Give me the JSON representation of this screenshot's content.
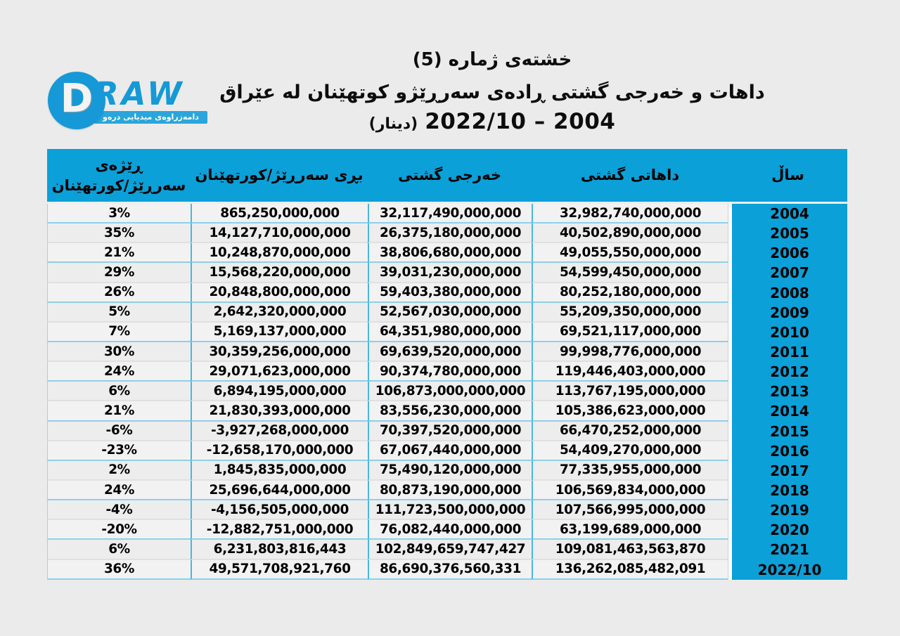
{
  "logo": {
    "d_mark": "D",
    "brand": "RAW",
    "tagline": "دامەزراوەی میدیایی درەو"
  },
  "title": {
    "line1": "خشتەی ژمارە (5)",
    "line2": "داهات و خەرجی گشتی ڕادەی سەرڕێژو کوتهێنان لە عێراق",
    "unit": "(دینار)",
    "range_display": "2022/10 – 2004"
  },
  "colors": {
    "accent_cyan": "#0ba0d8",
    "row_divider_cyan": "#8fcfec",
    "row_divider_gray": "#e0e0e0",
    "cell_background": "#f2f2f2",
    "page_background": "#ebebeb"
  },
  "table_headers": {
    "ratio_line1": "ڕێژەی",
    "ratio_line2": "سەرڕێژ/کورتهێنان",
    "amount": "بڕی سەرڕێژ/کورتهێنان",
    "expenditure": "خەرجی گشتی",
    "revenue": "داهاتی گشتی",
    "year": "ساڵ"
  },
  "chart_data": {
    "type": "table",
    "title": "خشتەی ژمارە (5)",
    "subtitle": "داهات و خەرجی گشتی ڕادەی سەرڕێژو کوتهێنان لە عێراق",
    "unit_note": "2004 – 2022/10 (دینار)",
    "columns_rtl_order": [
      "ساڵ",
      "داهاتی گشتی",
      "خەرجی گشتی",
      "بڕی سەرڕێژ/کورتهێنان",
      "ڕێژەی سەرڕێژ/کورتهێنان"
    ],
    "rows": [
      {
        "year": "2004",
        "revenue": "32,982,740,000,000",
        "expenditure": "32,117,490,000,000",
        "amount": "865,250,000,000",
        "ratio": "3%"
      },
      {
        "year": "2005",
        "revenue": "40,502,890,000,000",
        "expenditure": "26,375,180,000,000",
        "amount": "14,127,710,000,000",
        "ratio": "35%"
      },
      {
        "year": "2006",
        "revenue": "49,055,550,000,000",
        "expenditure": "38,806,680,000,000",
        "amount": "10,248,870,000,000",
        "ratio": "21%"
      },
      {
        "year": "2007",
        "revenue": "54,599,450,000,000",
        "expenditure": "39,031,230,000,000",
        "amount": "15,568,220,000,000",
        "ratio": "29%"
      },
      {
        "year": "2008",
        "revenue": "80,252,180,000,000",
        "expenditure": "59,403,380,000,000",
        "amount": "20,848,800,000,000",
        "ratio": "26%"
      },
      {
        "year": "2009",
        "revenue": "55,209,350,000,000",
        "expenditure": "52,567,030,000,000",
        "amount": "2,642,320,000,000",
        "ratio": "5%"
      },
      {
        "year": "2010",
        "revenue": "69,521,117,000,000",
        "expenditure": "64,351,980,000,000",
        "amount": "5,169,137,000,000",
        "ratio": "7%"
      },
      {
        "year": "2011",
        "revenue": "99,998,776,000,000",
        "expenditure": "69,639,520,000,000",
        "amount": "30,359,256,000,000",
        "ratio": "30%"
      },
      {
        "year": "2012",
        "revenue": "119,446,403,000,000",
        "expenditure": "90,374,780,000,000",
        "amount": "29,071,623,000,000",
        "ratio": "24%"
      },
      {
        "year": "2013",
        "revenue": "113,767,195,000,000",
        "expenditure": "106,873,000,000,000",
        "amount": "6,894,195,000,000",
        "ratio": "6%"
      },
      {
        "year": "2014",
        "revenue": "105,386,623,000,000",
        "expenditure": "83,556,230,000,000",
        "amount": "21,830,393,000,000",
        "ratio": "21%"
      },
      {
        "year": "2015",
        "revenue": "66,470,252,000,000",
        "expenditure": "70,397,520,000,000",
        "amount": "-3,927,268,000,000",
        "ratio": "-6%"
      },
      {
        "year": "2016",
        "revenue": "54,409,270,000,000",
        "expenditure": "67,067,440,000,000",
        "amount": "-12,658,170,000,000",
        "ratio": "-23%"
      },
      {
        "year": "2017",
        "revenue": "77,335,955,000,000",
        "expenditure": "75,490,120,000,000",
        "amount": "1,845,835,000,000",
        "ratio": "2%"
      },
      {
        "year": "2018",
        "revenue": "106,569,834,000,000",
        "expenditure": "80,873,190,000,000",
        "amount": "25,696,644,000,000",
        "ratio": "24%"
      },
      {
        "year": "2019",
        "revenue": "107,566,995,000,000",
        "expenditure": "111,723,500,000,000",
        "amount": "-4,156,505,000,000",
        "ratio": "-4%"
      },
      {
        "year": "2020",
        "revenue": "63,199,689,000,000",
        "expenditure": "76,082,440,000,000",
        "amount": "-12,882,751,000,000",
        "ratio": "-20%"
      },
      {
        "year": "2021",
        "revenue": "109,081,463,563,870",
        "expenditure": "102,849,659,747,427",
        "amount": "6,231,803,816,443",
        "ratio": "6%"
      },
      {
        "year": "2022/10",
        "revenue": "136,262,085,482,091",
        "expenditure": "86,690,376,560,331",
        "amount": "49,571,708,921,760",
        "ratio": "36%"
      }
    ]
  }
}
